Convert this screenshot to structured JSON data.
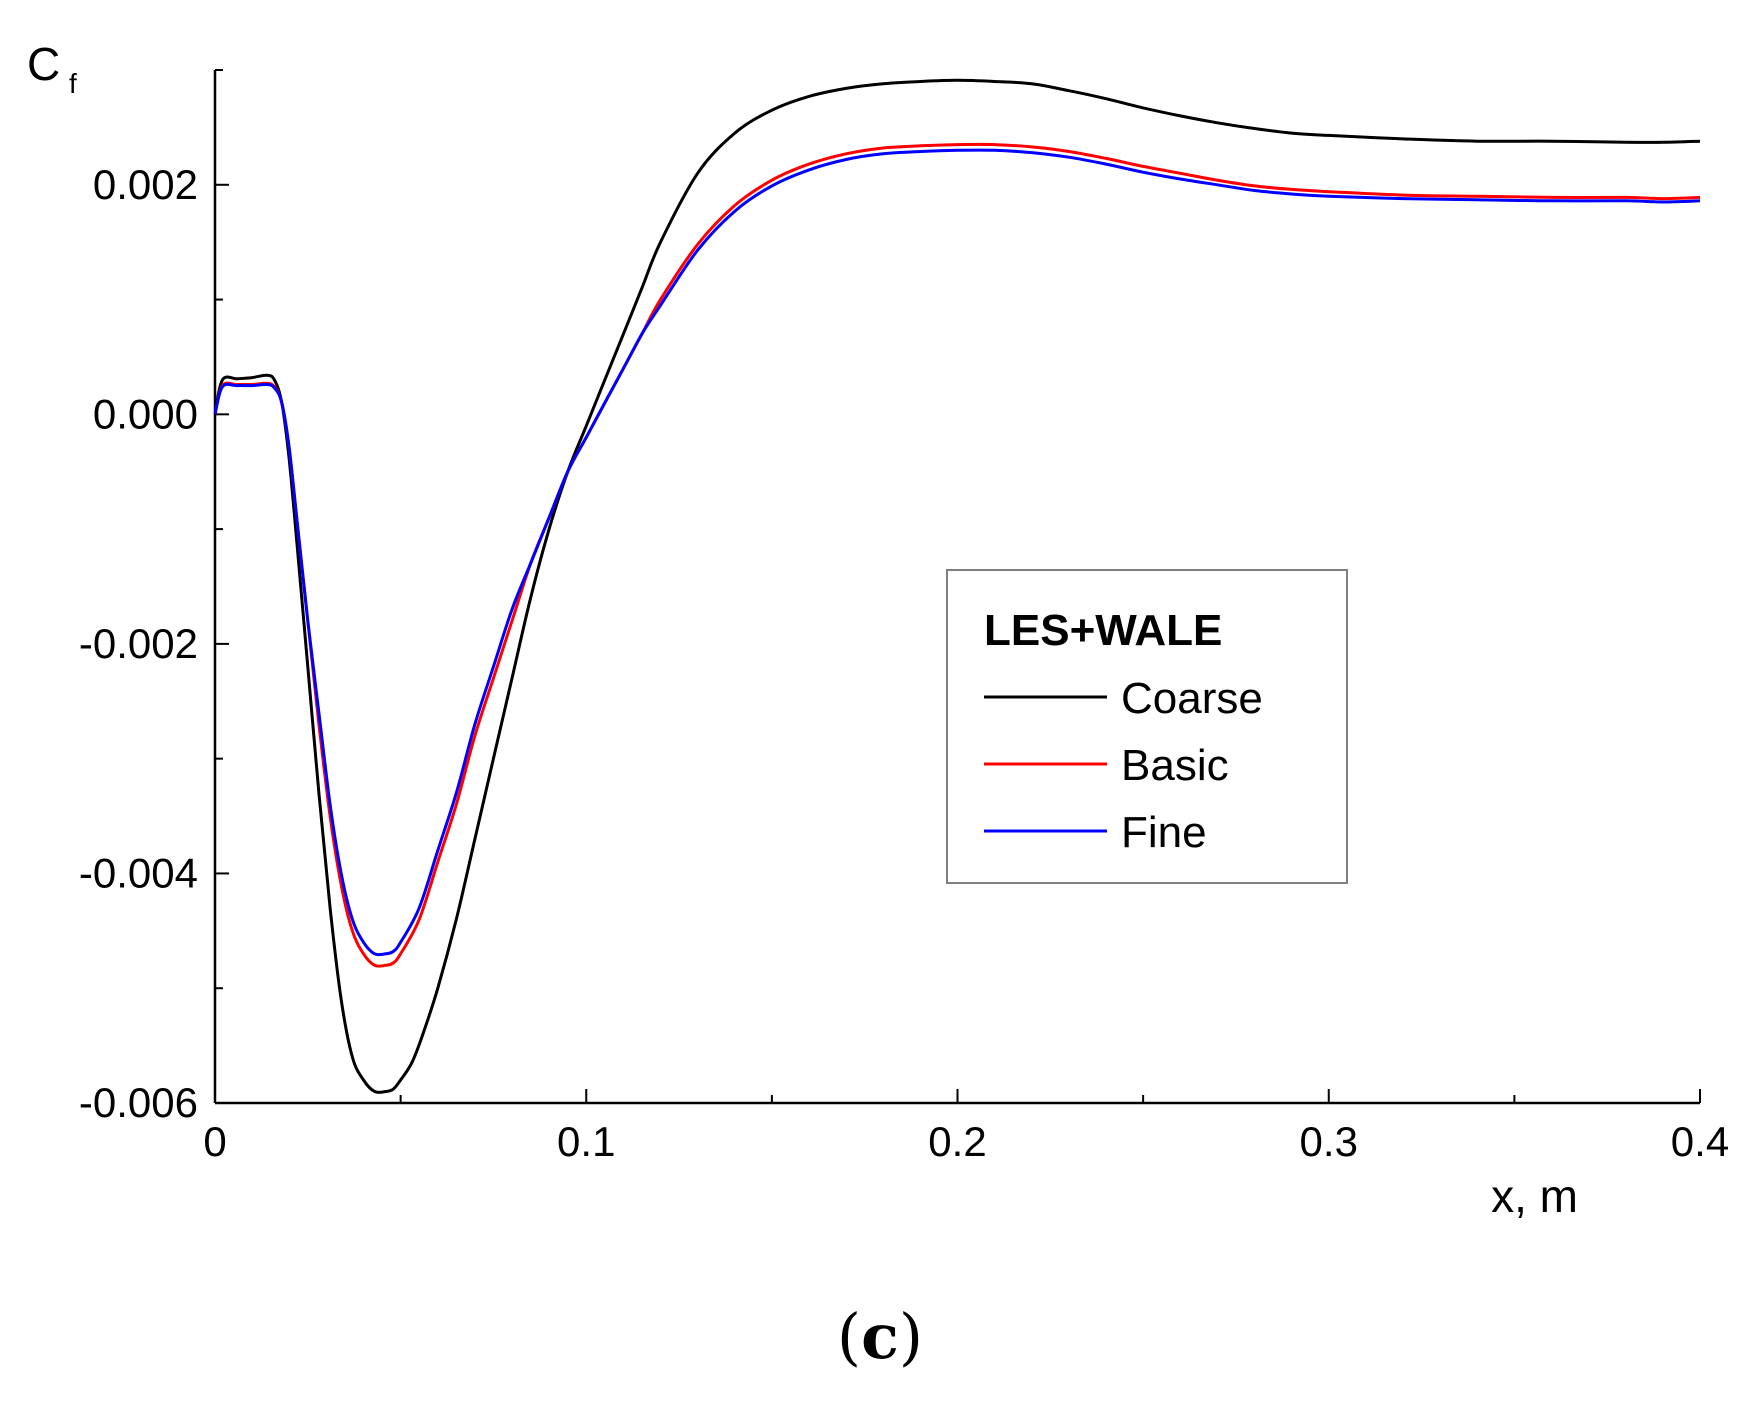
{
  "chart_data": {
    "type": "line",
    "title": "",
    "xlabel": "x, m",
    "ylabel": "C",
    "ylabel_subscript": "f",
    "xlim": [
      0,
      0.4
    ],
    "ylim": [
      -0.006,
      0.003
    ],
    "x_ticks": [
      0,
      0.1,
      0.2,
      0.3,
      0.4
    ],
    "x_tick_labels": [
      "0",
      "0.1",
      "0.2",
      "0.3",
      "0.4"
    ],
    "x_minor_ticks": [
      0.05,
      0.15,
      0.25,
      0.35
    ],
    "y_ticks": [
      -0.006,
      -0.004,
      -0.002,
      0.0,
      0.002
    ],
    "y_tick_labels": [
      "-0.006",
      "-0.004",
      "-0.002",
      "0.000",
      "0.002"
    ],
    "y_minor_ticks": [
      -0.005,
      -0.003,
      -0.001,
      0.001,
      0.003
    ],
    "grid": false,
    "legend": {
      "title": "LES+WALE",
      "placement": "center-right"
    },
    "series": [
      {
        "name": "Coarse",
        "color": "#000000",
        "points": [
          [
            0.0,
            0.0
          ],
          [
            0.002,
            0.0003
          ],
          [
            0.006,
            0.00031
          ],
          [
            0.01,
            0.00032
          ],
          [
            0.014,
            0.00034
          ],
          [
            0.016,
            0.0003
          ],
          [
            0.018,
            0.0001
          ],
          [
            0.02,
            -0.0004
          ],
          [
            0.022,
            -0.0011
          ],
          [
            0.025,
            -0.0022
          ],
          [
            0.028,
            -0.0033
          ],
          [
            0.031,
            -0.0043
          ],
          [
            0.034,
            -0.0051
          ],
          [
            0.037,
            -0.0056
          ],
          [
            0.04,
            -0.0058
          ],
          [
            0.043,
            -0.0059
          ],
          [
            0.046,
            -0.0059
          ],
          [
            0.048,
            -0.00588
          ],
          [
            0.05,
            -0.0058
          ],
          [
            0.053,
            -0.00565
          ],
          [
            0.056,
            -0.0054
          ],
          [
            0.06,
            -0.005
          ],
          [
            0.065,
            -0.0044
          ],
          [
            0.07,
            -0.0037
          ],
          [
            0.075,
            -0.003
          ],
          [
            0.08,
            -0.0023
          ],
          [
            0.085,
            -0.0016
          ],
          [
            0.09,
            -0.001
          ],
          [
            0.095,
            -0.0005
          ],
          [
            0.1,
            -0.0001
          ],
          [
            0.105,
            0.0003
          ],
          [
            0.11,
            0.0007
          ],
          [
            0.115,
            0.0011
          ],
          [
            0.12,
            0.0015
          ],
          [
            0.13,
            0.0021
          ],
          [
            0.14,
            0.00245
          ],
          [
            0.15,
            0.00265
          ],
          [
            0.16,
            0.00277
          ],
          [
            0.17,
            0.00284
          ],
          [
            0.18,
            0.00288
          ],
          [
            0.19,
            0.0029
          ],
          [
            0.2,
            0.00291
          ],
          [
            0.21,
            0.0029
          ],
          [
            0.22,
            0.00288
          ],
          [
            0.23,
            0.00282
          ],
          [
            0.24,
            0.00275
          ],
          [
            0.25,
            0.00267
          ],
          [
            0.26,
            0.0026
          ],
          [
            0.27,
            0.00254
          ],
          [
            0.28,
            0.00249
          ],
          [
            0.29,
            0.00245
          ],
          [
            0.3,
            0.00243
          ],
          [
            0.32,
            0.0024
          ],
          [
            0.34,
            0.00238
          ],
          [
            0.36,
            0.00238
          ],
          [
            0.38,
            0.00237
          ],
          [
            0.39,
            0.00237
          ],
          [
            0.4,
            0.00238
          ]
        ]
      },
      {
        "name": "Basic",
        "color": "#ff0000",
        "points": [
          [
            0.0,
            0.0
          ],
          [
            0.002,
            0.00025
          ],
          [
            0.006,
            0.00026
          ],
          [
            0.01,
            0.00026
          ],
          [
            0.014,
            0.00027
          ],
          [
            0.016,
            0.00024
          ],
          [
            0.018,
            0.0001
          ],
          [
            0.02,
            -0.0003
          ],
          [
            0.022,
            -0.0009
          ],
          [
            0.025,
            -0.0018
          ],
          [
            0.028,
            -0.0027
          ],
          [
            0.031,
            -0.0035
          ],
          [
            0.034,
            -0.0041
          ],
          [
            0.037,
            -0.0045
          ],
          [
            0.04,
            -0.0047
          ],
          [
            0.043,
            -0.0048
          ],
          [
            0.046,
            -0.0048
          ],
          [
            0.048,
            -0.00478
          ],
          [
            0.05,
            -0.0047
          ],
          [
            0.055,
            -0.0044
          ],
          [
            0.06,
            -0.0039
          ],
          [
            0.065,
            -0.0034
          ],
          [
            0.07,
            -0.0028
          ],
          [
            0.075,
            -0.0023
          ],
          [
            0.08,
            -0.0018
          ],
          [
            0.085,
            -0.0013
          ],
          [
            0.09,
            -0.0009
          ],
          [
            0.095,
            -0.0005
          ],
          [
            0.1,
            -0.0002
          ],
          [
            0.105,
            0.0001
          ],
          [
            0.11,
            0.0004
          ],
          [
            0.115,
            0.0007
          ],
          [
            0.12,
            0.001
          ],
          [
            0.13,
            0.00148
          ],
          [
            0.14,
            0.00182
          ],
          [
            0.15,
            0.00204
          ],
          [
            0.16,
            0.00218
          ],
          [
            0.17,
            0.00227
          ],
          [
            0.18,
            0.00232
          ],
          [
            0.19,
            0.00234
          ],
          [
            0.2,
            0.00235
          ],
          [
            0.21,
            0.00235
          ],
          [
            0.22,
            0.00233
          ],
          [
            0.23,
            0.00229
          ],
          [
            0.24,
            0.00223
          ],
          [
            0.25,
            0.00216
          ],
          [
            0.26,
            0.0021
          ],
          [
            0.27,
            0.00204
          ],
          [
            0.28,
            0.00199
          ],
          [
            0.29,
            0.00196
          ],
          [
            0.3,
            0.00194
          ],
          [
            0.32,
            0.00191
          ],
          [
            0.34,
            0.0019
          ],
          [
            0.36,
            0.00189
          ],
          [
            0.38,
            0.00189
          ],
          [
            0.39,
            0.00188
          ],
          [
            0.4,
            0.00189
          ]
        ]
      },
      {
        "name": "Fine",
        "color": "#0000ff",
        "points": [
          [
            0.0,
            0.0
          ],
          [
            0.002,
            0.00024
          ],
          [
            0.006,
            0.00025
          ],
          [
            0.01,
            0.00025
          ],
          [
            0.014,
            0.00026
          ],
          [
            0.016,
            0.00023
          ],
          [
            0.018,
            0.0001
          ],
          [
            0.02,
            -0.0003
          ],
          [
            0.022,
            -0.0009
          ],
          [
            0.025,
            -0.0018
          ],
          [
            0.028,
            -0.0026
          ],
          [
            0.031,
            -0.0034
          ],
          [
            0.034,
            -0.004
          ],
          [
            0.037,
            -0.0044
          ],
          [
            0.04,
            -0.0046
          ],
          [
            0.043,
            -0.0047
          ],
          [
            0.046,
            -0.0047
          ],
          [
            0.048,
            -0.00468
          ],
          [
            0.05,
            -0.0046
          ],
          [
            0.055,
            -0.0043
          ],
          [
            0.06,
            -0.0038
          ],
          [
            0.065,
            -0.0033
          ],
          [
            0.07,
            -0.0027
          ],
          [
            0.075,
            -0.0022
          ],
          [
            0.08,
            -0.0017
          ],
          [
            0.085,
            -0.0013
          ],
          [
            0.09,
            -0.0009
          ],
          [
            0.095,
            -0.0005
          ],
          [
            0.1,
            -0.0002
          ],
          [
            0.105,
            0.0001
          ],
          [
            0.11,
            0.0004
          ],
          [
            0.115,
            0.0007
          ],
          [
            0.12,
            0.00095
          ],
          [
            0.13,
            0.00143
          ],
          [
            0.14,
            0.00177
          ],
          [
            0.15,
            0.00199
          ],
          [
            0.16,
            0.00213
          ],
          [
            0.17,
            0.00222
          ],
          [
            0.18,
            0.00227
          ],
          [
            0.19,
            0.00229
          ],
          [
            0.2,
            0.0023
          ],
          [
            0.21,
            0.0023
          ],
          [
            0.22,
            0.00228
          ],
          [
            0.23,
            0.00224
          ],
          [
            0.24,
            0.00218
          ],
          [
            0.25,
            0.00211
          ],
          [
            0.26,
            0.00205
          ],
          [
            0.27,
            0.002
          ],
          [
            0.28,
            0.00195
          ],
          [
            0.29,
            0.00192
          ],
          [
            0.3,
            0.0019
          ],
          [
            0.32,
            0.00188
          ],
          [
            0.34,
            0.00187
          ],
          [
            0.36,
            0.00186
          ],
          [
            0.38,
            0.00186
          ],
          [
            0.39,
            0.00185
          ],
          [
            0.4,
            0.00186
          ]
        ]
      }
    ]
  },
  "panel_label": {
    "open": "(",
    "letter": "c",
    "close": ")"
  }
}
